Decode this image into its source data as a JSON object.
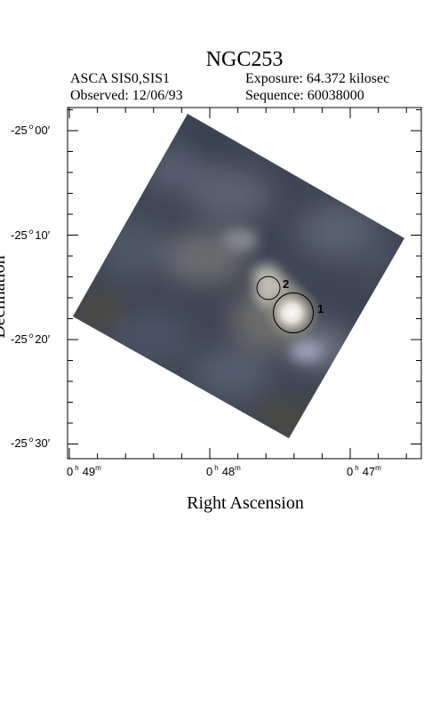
{
  "title": "NGC253",
  "header": {
    "instrument": "ASCA SIS0,SIS1",
    "observed": "Observed: 12/06/93",
    "exposure": "Exposure: 64.372 kilosec",
    "sequence": "Sequence: 60038000"
  },
  "axes": {
    "xlabel": "Right Ascension",
    "ylabel": "Declination",
    "x_ticks": [
      {
        "h": "0",
        "m": "49"
      },
      {
        "h": "0",
        "m": "48"
      },
      {
        "h": "0",
        "m": "47"
      }
    ],
    "y_ticks": [
      {
        "deg": "-25",
        "min": "00"
      },
      {
        "deg": "-25",
        "min": "10"
      },
      {
        "deg": "-25",
        "min": "20"
      },
      {
        "deg": "-25",
        "min": "30"
      }
    ]
  },
  "sources": [
    {
      "id": "1"
    },
    {
      "id": "2"
    }
  ]
}
